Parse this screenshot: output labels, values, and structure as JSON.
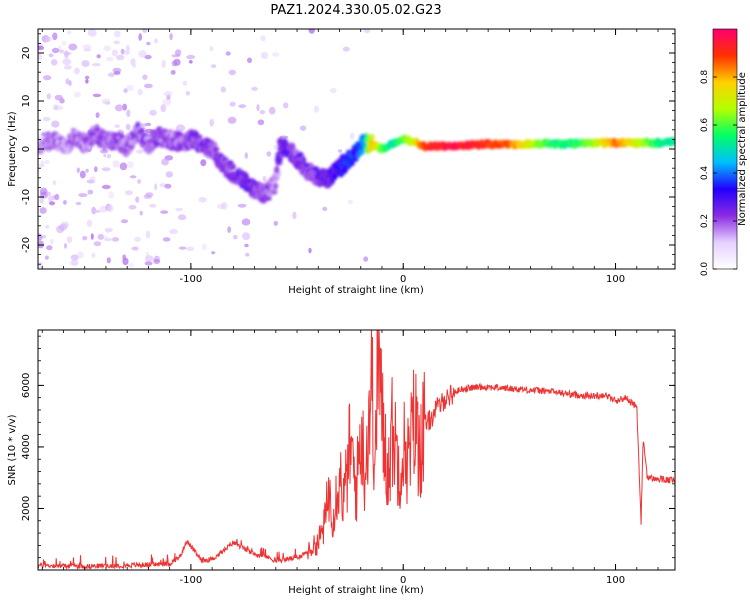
{
  "page": {
    "title": "PAZ1.2024.330.05.02.G23"
  },
  "chart_data": [
    {
      "type": "heatmap",
      "title": "",
      "xlabel": "Height of straight line (km)",
      "ylabel": "Frequency (Hz)",
      "xlim": [
        -172,
        128
      ],
      "ylim": [
        -25,
        25
      ],
      "xticks": [
        -100,
        0,
        100
      ],
      "yticks": [
        -20,
        -10,
        0,
        10,
        20
      ],
      "grid": false,
      "colorbar": {
        "label": "Normalized spectral amplitude",
        "range": [
          0,
          1
        ],
        "ticks": [
          0.0,
          0.2,
          0.4,
          0.6,
          0.8
        ],
        "colors": [
          "#ffffff",
          "#e6d0ff",
          "#8a2be2",
          "#2200ff",
          "#00bfff",
          "#00ff66",
          "#b4ff00",
          "#ffd000",
          "#ff3000",
          "#ff0070"
        ]
      },
      "ridge": {
        "x": [
          -172,
          -165,
          -160,
          -155,
          -150,
          -145,
          -140,
          -135,
          -130,
          -125,
          -120,
          -115,
          -110,
          -105,
          -100,
          -95,
          -90,
          -87,
          -85,
          -80,
          -75,
          -70,
          -65,
          -60,
          -58,
          -55,
          -50,
          -45,
          -40,
          -35,
          -30,
          -25,
          -22,
          -18,
          -15,
          -10,
          -5,
          0,
          5,
          10,
          20,
          30,
          40,
          50,
          60,
          70,
          80,
          90,
          100,
          110,
          120,
          128
        ],
        "frequency": [
          1.0,
          2.0,
          0.5,
          2.5,
          1.0,
          3.0,
          1.5,
          2.0,
          0.5,
          3.5,
          1.0,
          2.5,
          2.0,
          1.5,
          2.0,
          1.0,
          0.0,
          -2.0,
          -3.0,
          -5.0,
          -6.5,
          -8.5,
          -9.5,
          -7.0,
          0.5,
          0.0,
          -2.0,
          -4.5,
          -6.0,
          -6.0,
          -4.0,
          -2.0,
          -0.5,
          1.5,
          1.0,
          0.0,
          1.0,
          2.0,
          1.5,
          0.5,
          0.7,
          0.8,
          1.0,
          1.0,
          1.0,
          1.1,
          1.1,
          1.2,
          1.3,
          1.3,
          1.3,
          1.4
        ],
        "amplitude": [
          0.15,
          0.18,
          0.15,
          0.18,
          0.16,
          0.2,
          0.18,
          0.2,
          0.16,
          0.2,
          0.18,
          0.2,
          0.18,
          0.2,
          0.22,
          0.22,
          0.2,
          0.25,
          0.22,
          0.22,
          0.25,
          0.22,
          0.2,
          0.15,
          0.25,
          0.25,
          0.22,
          0.22,
          0.25,
          0.25,
          0.3,
          0.35,
          0.35,
          0.4,
          0.8,
          0.6,
          0.5,
          0.6,
          0.7,
          0.9,
          0.95,
          0.95,
          0.9,
          0.85,
          0.7,
          0.55,
          0.55,
          0.65,
          0.85,
          0.7,
          0.55,
          0.5
        ]
      }
    },
    {
      "type": "line",
      "title": "",
      "xlabel": "Height of straight line (km)",
      "ylabel": "SNR (10 * v/v)",
      "xlim": [
        -172,
        128
      ],
      "ylim": [
        0,
        7800
      ],
      "xticks": [
        -100,
        0,
        100
      ],
      "yticks": [
        2000,
        4000,
        6000
      ],
      "grid": false,
      "series": [
        {
          "color": "#ee3333",
          "x": [
            -172,
            -150,
            -130,
            -110,
            -105,
            -102,
            -95,
            -90,
            -85,
            -80,
            -75,
            -70,
            -65,
            -60,
            -55,
            -50,
            -45,
            -40,
            -37,
            -35,
            -33,
            -30,
            -28,
            -25,
            -22,
            -20,
            -18,
            -15,
            -13,
            -12,
            -10,
            -7,
            -5,
            -2,
            0,
            3,
            5,
            8,
            10,
            13,
            15,
            18,
            20,
            23,
            25,
            28,
            30,
            35,
            40,
            50,
            60,
            70,
            80,
            90,
            95,
            100,
            105,
            108,
            110,
            111,
            112,
            113,
            115,
            120,
            128
          ],
          "y": [
            150,
            120,
            150,
            200,
            450,
            950,
            300,
            350,
            600,
            900,
            700,
            500,
            450,
            300,
            350,
            400,
            600,
            900,
            1500,
            2600,
            1800,
            3200,
            2200,
            4000,
            2600,
            4600,
            3200,
            6200,
            3400,
            7600,
            4800,
            3200,
            4600,
            3400,
            4000,
            3600,
            4900,
            4000,
            4700,
            4900,
            5200,
            5400,
            5600,
            5700,
            5800,
            5900,
            5900,
            5950,
            5950,
            5900,
            5850,
            5800,
            5700,
            5650,
            5700,
            5500,
            5600,
            5400,
            5300,
            3500,
            1500,
            4300,
            3000,
            2950,
            2900
          ]
        }
      ]
    }
  ]
}
